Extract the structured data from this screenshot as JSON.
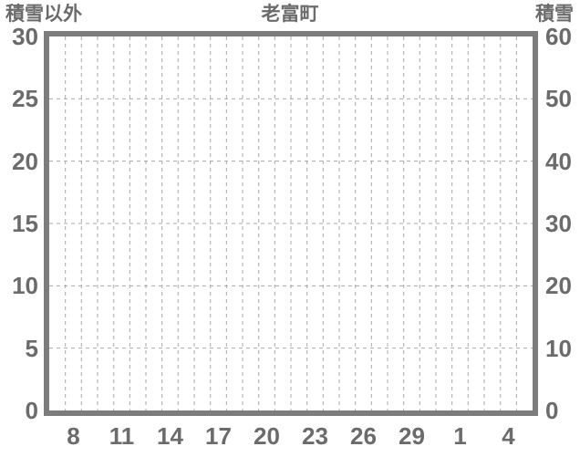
{
  "header": {
    "left_axis_title": "積雪以外",
    "chart_title": "老富町",
    "right_axis_title": "積雪"
  },
  "chart_data": {
    "type": "line",
    "title": "老富町",
    "left_axis": {
      "label": "積雪以外",
      "min": 0,
      "max": 30,
      "ticks": [
        0,
        5,
        10,
        15,
        20,
        25,
        30
      ]
    },
    "right_axis": {
      "label": "積雪",
      "min": 0,
      "max": 60,
      "ticks": [
        0,
        10,
        20,
        30,
        40,
        50,
        60
      ]
    },
    "x_axis": {
      "tick_labels": [
        "8",
        "11",
        "14",
        "17",
        "20",
        "23",
        "26",
        "29",
        "1",
        "4"
      ],
      "tick_step_days": 3,
      "first_tick_day_offset": 1.5,
      "total_days": 30
    },
    "series": [],
    "grid": {
      "horizontal": true,
      "vertical": true,
      "style": "dashed"
    },
    "colors": {
      "frame": "#7c7c7c",
      "grid": "#a9a9a9",
      "text": "#6b6b6b",
      "background": "#ffffff"
    }
  }
}
